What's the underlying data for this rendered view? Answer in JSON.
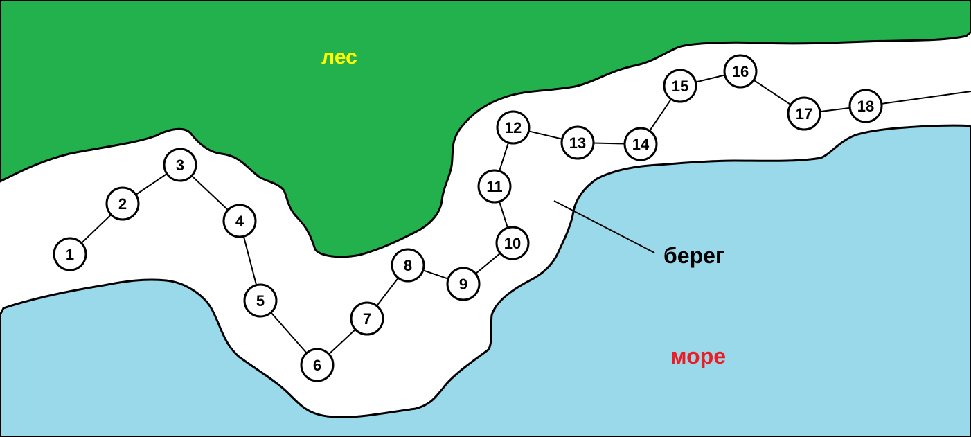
{
  "colors": {
    "forest": "#22b14c",
    "sea": "#99d9ea",
    "shore": "#ffffff",
    "outline": "#000000",
    "forest_label": "#ffff00",
    "sea_label": "#ed1c24",
    "shore_label": "#000000"
  },
  "labels": {
    "forest": "лес",
    "shore": "берег",
    "sea": "море"
  },
  "nodes": [
    "1",
    "2",
    "3",
    "4",
    "5",
    "6",
    "7",
    "8",
    "9",
    "10",
    "11",
    "12",
    "13",
    "14",
    "15",
    "16",
    "17",
    "18"
  ]
}
